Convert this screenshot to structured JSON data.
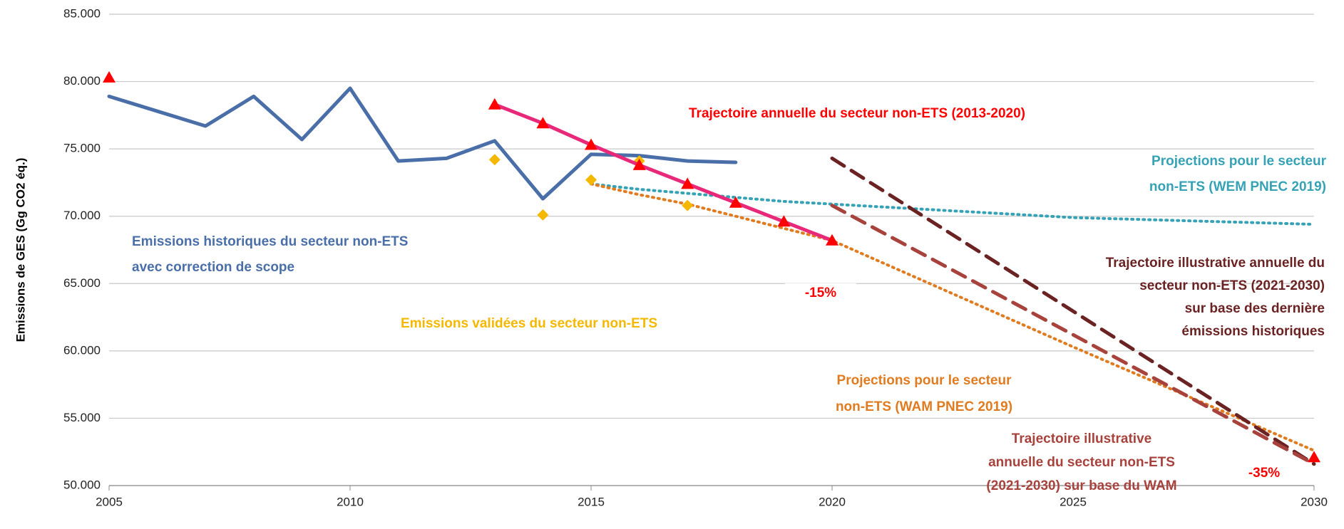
{
  "chart_data": {
    "type": "line",
    "ylabel": "Emissions de GES (Gg CO2 éq.)",
    "xlim": [
      2005,
      2030
    ],
    "xticks": [
      2005,
      2010,
      2015,
      2020,
      2025,
      2030
    ],
    "ylim": [
      50000,
      85000
    ],
    "yticks": [
      {
        "value": 50000,
        "label": "50.000"
      },
      {
        "value": 55000,
        "label": "55.000"
      },
      {
        "value": 60000,
        "label": "60.000"
      },
      {
        "value": 65000,
        "label": "65.000"
      },
      {
        "value": 70000,
        "label": "70.000"
      },
      {
        "value": 75000,
        "label": "75.000"
      },
      {
        "value": 80000,
        "label": "80.000"
      },
      {
        "value": 85000,
        "label": "85.000"
      }
    ],
    "grid": true,
    "series": [
      {
        "color": "#36a2b5",
        "style": "dotted",
        "x": [
          2015,
          2016,
          2017,
          2018,
          2019,
          2020,
          2021,
          2022,
          2023,
          2024,
          2025,
          2026,
          2027,
          2028,
          2029,
          2030
        ],
        "values": [
          72400,
          72000,
          71700,
          71400,
          71100,
          70900,
          70700,
          70500,
          70300,
          70100,
          69900,
          69800,
          69700,
          69600,
          69500,
          69400
        ]
      },
      {
        "color": "#e07b20",
        "style": "dotted",
        "x": [
          2015,
          2016,
          2017,
          2018,
          2019,
          2020,
          2025,
          2030
        ],
        "values": [
          72400,
          71600,
          70900,
          70000,
          69100,
          68200,
          60300,
          52600
        ]
      },
      {
        "color": "#6b2222",
        "style": "dashed",
        "x": [
          2020,
          2030
        ],
        "values": [
          74300,
          51600
        ]
      },
      {
        "color": "#a8423c",
        "style": "dashed",
        "x": [
          2020,
          2030
        ],
        "values": [
          70800,
          51600
        ]
      },
      {
        "color": "#4a6fa8",
        "style": "solid",
        "x": [
          2005,
          2006,
          2007,
          2008,
          2009,
          2010,
          2011,
          2012,
          2013,
          2014,
          2015,
          2016,
          2017,
          2018
        ],
        "values": [
          78900,
          77800,
          76700,
          78900,
          75700,
          79500,
          74100,
          74300,
          75600,
          71300,
          74600,
          74500,
          74100,
          74000
        ]
      },
      {
        "color": "#f5b800",
        "style": "none",
        "marker": "diamond",
        "x": [
          2013,
          2014,
          2015,
          2016,
          2017
        ],
        "values": [
          74200,
          70100,
          72700,
          74100,
          70800
        ]
      },
      {
        "color": "#e8297a",
        "marker_color": "#ff0000",
        "style": "solid",
        "marker": "triangle",
        "x": [
          2013,
          2014,
          2015,
          2016,
          2017,
          2018,
          2019,
          2020
        ],
        "values": [
          78300,
          76900,
          75300,
          73800,
          72400,
          71000,
          69600,
          68200
        ]
      },
      {
        "color": "#ff0000",
        "style": "none",
        "marker": "triangle",
        "x": [
          2005,
          2030
        ],
        "values": [
          80300,
          52100
        ]
      }
    ],
    "annotations": [
      {
        "color": "#ff0000",
        "lines": [
          "Trajectoire annuelle du secteur non-ETS (2013-2020)"
        ]
      },
      {
        "color": "#36a2b5",
        "lines": [
          "Projections pour le secteur",
          "non-ETS (WEM PNEC 2019)"
        ]
      },
      {
        "color": "#4a6fa8",
        "lines": [
          "Emissions historiques du secteur non-ETS",
          "avec correction de scope"
        ]
      },
      {
        "color": "#f5b800",
        "lines": [
          "Emissions validées du secteur non-ETS"
        ]
      },
      {
        "color": "#6b2222",
        "lines": [
          "Trajectoire illustrative annuelle du",
          "secteur non-ETS (2021-2030)",
          "sur base des dernière",
          "émissions historiques"
        ]
      },
      {
        "color": "#e07b20",
        "lines": [
          "Projections pour le secteur",
          "non-ETS (WAM PNEC 2019)"
        ]
      },
      {
        "color": "#a8423c",
        "lines": [
          "Trajectoire illustrative",
          "annuelle du secteur non-ETS",
          "(2021-2030) sur base du WAM"
        ]
      },
      {
        "color": "#ff0000",
        "lines": [
          "-15%"
        ]
      },
      {
        "color": "#ff0000",
        "lines": [
          "-35%"
        ]
      }
    ]
  }
}
